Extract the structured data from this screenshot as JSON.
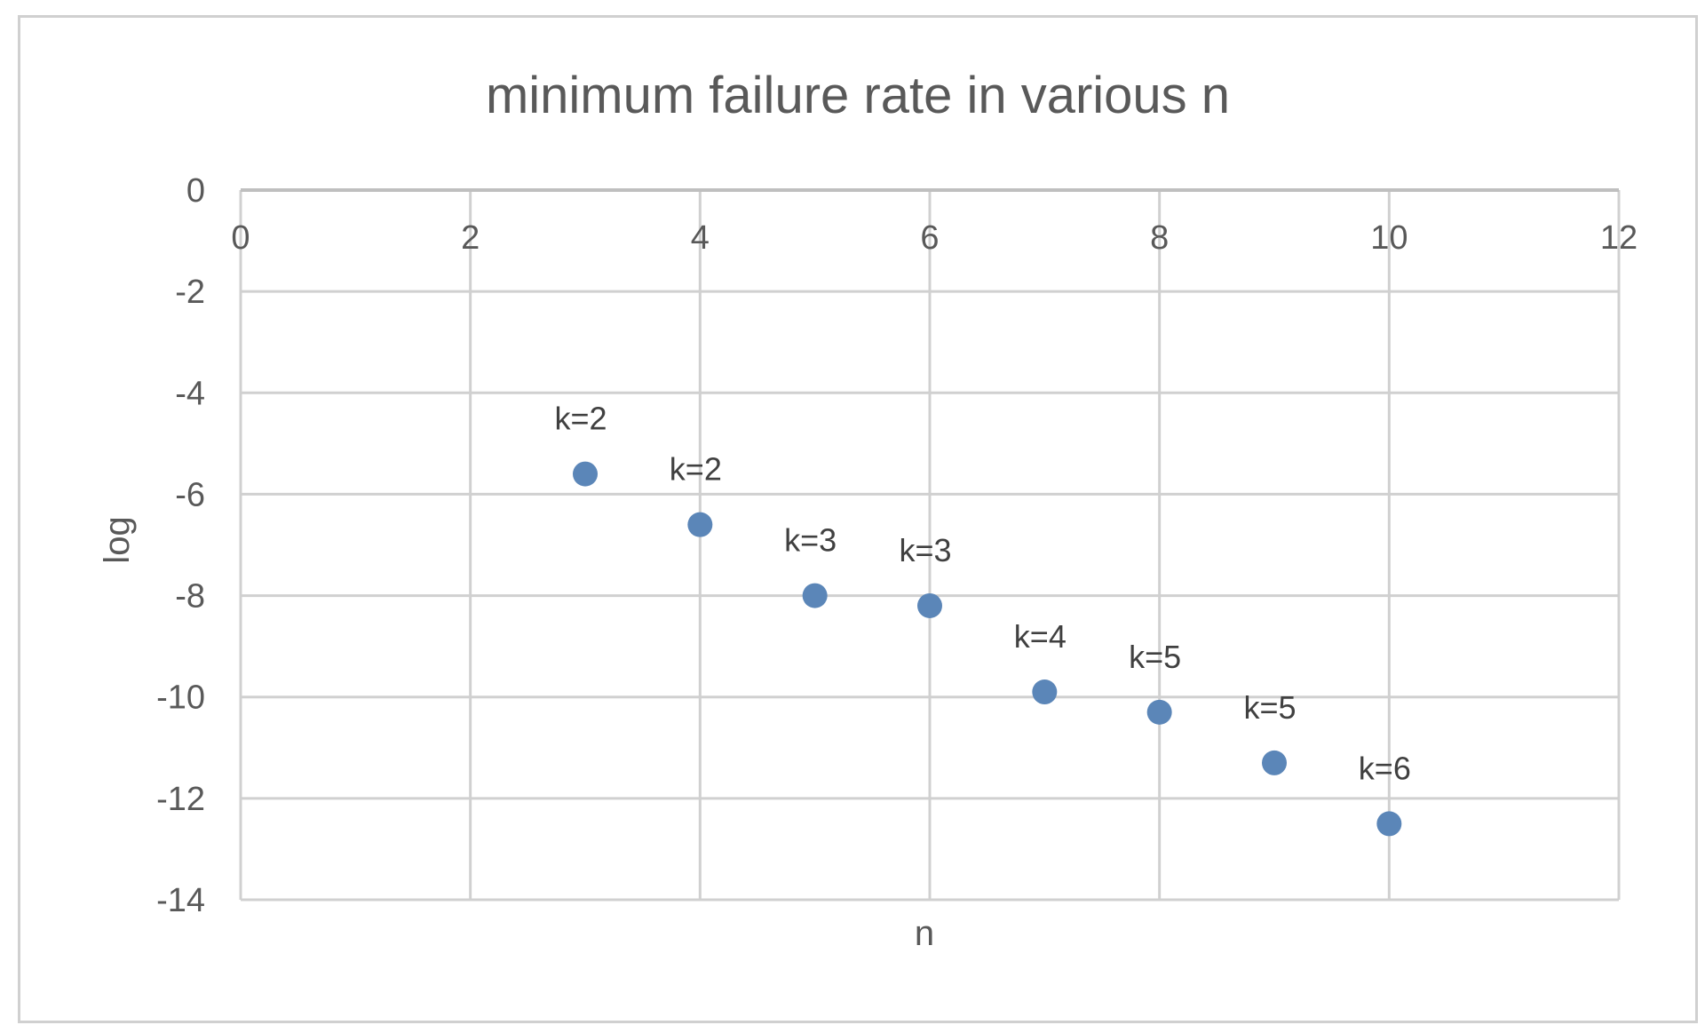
{
  "chart_data": {
    "type": "scatter",
    "title": "minimum failure rate in various n",
    "xlabel": "n",
    "ylabel": "log",
    "xlim": [
      0,
      12
    ],
    "ylim": [
      -14,
      0
    ],
    "xticks": [
      "0",
      "2",
      "4",
      "6",
      "8",
      "10",
      "12"
    ],
    "yticks": [
      "0",
      "-2",
      "-4",
      "-6",
      "-8",
      "-10",
      "-12",
      "-14"
    ],
    "grid": true,
    "legend": "none",
    "marker_color": "#5b86b8",
    "points": [
      {
        "x": 3,
        "y": -5.6,
        "label": "k=2"
      },
      {
        "x": 4,
        "y": -6.6,
        "label": "k=2"
      },
      {
        "x": 5,
        "y": -8.0,
        "label": "k=3"
      },
      {
        "x": 6,
        "y": -8.2,
        "label": "k=3"
      },
      {
        "x": 7,
        "y": -9.9,
        "label": "k=4"
      },
      {
        "x": 8,
        "y": -10.3,
        "label": "k=5"
      },
      {
        "x": 9,
        "y": -11.3,
        "label": "k=5"
      },
      {
        "x": 10,
        "y": -12.5,
        "label": "k=6"
      }
    ]
  }
}
